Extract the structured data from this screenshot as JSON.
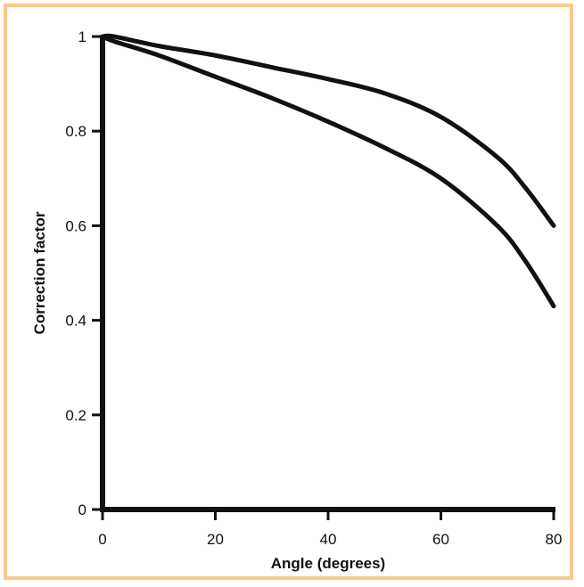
{
  "colors": {
    "frame": "#f9c98d",
    "ink": "#111111",
    "background": "#ffffff"
  },
  "chart_data": {
    "type": "line",
    "title": "",
    "xlabel": "Angle (degrees)",
    "ylabel": "Correction factor",
    "xlim": [
      0,
      80
    ],
    "ylim": [
      0,
      1
    ],
    "xticks": [
      0,
      20,
      40,
      60,
      80
    ],
    "yticks": [
      0,
      0.2,
      0.4,
      0.6,
      0.8,
      1
    ],
    "xtick_labels": [
      "0",
      "20",
      "40",
      "60",
      "80"
    ],
    "ytick_labels": [
      "0",
      "0.2",
      "0.4",
      "0.6",
      "0.8",
      "1"
    ],
    "grid": false,
    "legend": "none",
    "series": [
      {
        "x": [
          0,
          2,
          10,
          20,
          30,
          40,
          50,
          60,
          70,
          75,
          80
        ],
        "y": [
          1,
          1,
          0.98,
          0.96,
          0.935,
          0.91,
          0.88,
          0.83,
          0.745,
          0.68,
          0.6
        ]
      },
      {
        "x": [
          0,
          2,
          10,
          20,
          30,
          40,
          50,
          60,
          70,
          75,
          80
        ],
        "y": [
          1,
          0.99,
          0.96,
          0.915,
          0.87,
          0.82,
          0.765,
          0.7,
          0.6,
          0.525,
          0.43
        ]
      }
    ]
  }
}
